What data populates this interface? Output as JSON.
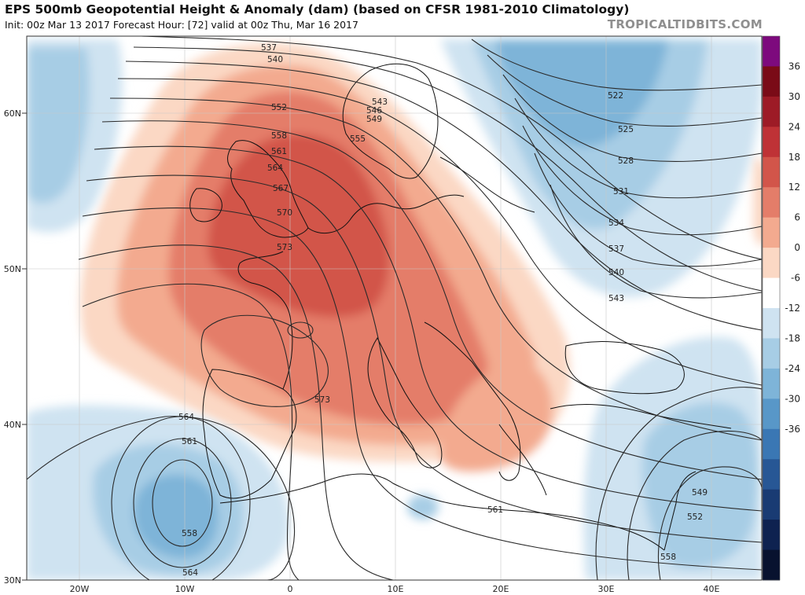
{
  "title": "EPS 500mb Geopotential Height & Anomaly (dam) (based on CFSR 1981-2010 Climatology)",
  "subtitle": "Init: 00z Mar 13 2017   Forecast Hour: [72]   valid at 00z Thu, Mar 16 2017",
  "credit": "TROPICALTIDBITS.COM",
  "lat_labels": [
    "60N",
    "50N",
    "40N",
    "30N"
  ],
  "lon_labels": [
    "20W",
    "10W",
    "0",
    "10E",
    "20E",
    "30E",
    "40E"
  ],
  "colorbar": {
    "labels": [
      "36",
      "30",
      "24",
      "18",
      "12",
      "6",
      "0",
      "-6",
      "-12",
      "-18",
      "-24",
      "-30",
      "-36"
    ],
    "colors": [
      "#7d0a7d",
      "#7a0b17",
      "#9d1b26",
      "#bf3236",
      "#d2554a",
      "#e47d69",
      "#f3aa8f",
      "#fbd8c4",
      "#ffffff",
      "#cfe3f1",
      "#a7cde5",
      "#7eb4d8",
      "#5897c8",
      "#3a77b4",
      "#275795",
      "#193b73",
      "#0e2250",
      "#08122f"
    ]
  },
  "contour_labels": [
    "537",
    "540",
    "543",
    "546",
    "549",
    "552",
    "555",
    "558",
    "561",
    "564",
    "567",
    "570",
    "573",
    "573",
    "522",
    "525",
    "528",
    "531",
    "534",
    "537",
    "540",
    "543",
    "564",
    "561",
    "558",
    "564",
    "561",
    "549",
    "552",
    "558"
  ]
}
